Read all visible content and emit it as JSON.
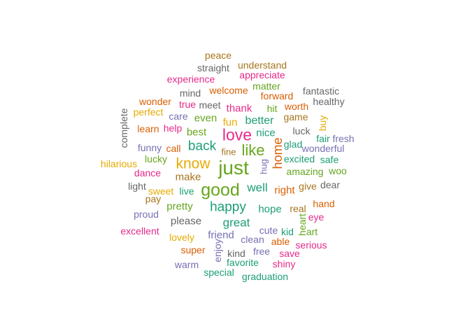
{
  "palette": {
    "teal": "#1b9e77",
    "orange": "#d95f02",
    "purple": "#7570b3",
    "pink": "#e7298a",
    "green": "#66a61e",
    "gold": "#e6ab02",
    "brown": "#a6761d",
    "gray": "#666666"
  },
  "words": [
    {
      "text": "just",
      "color": "green",
      "weight": 28
    },
    {
      "text": "good",
      "color": "green",
      "weight": 26
    },
    {
      "text": "love",
      "color": "pink",
      "weight": 24
    },
    {
      "text": "like",
      "color": "green",
      "weight": 23
    },
    {
      "text": "know",
      "color": "gold",
      "weight": 22
    },
    {
      "text": "back",
      "color": "teal",
      "weight": 21
    },
    {
      "text": "happy",
      "color": "teal",
      "weight": 20
    },
    {
      "text": "home",
      "color": "orange",
      "weight": 19,
      "vertical": true
    },
    {
      "text": "well",
      "color": "teal",
      "weight": 18
    },
    {
      "text": "great",
      "color": "teal",
      "weight": 18
    },
    {
      "text": "better",
      "color": "teal",
      "weight": 17
    },
    {
      "text": "right",
      "color": "orange",
      "weight": 16
    },
    {
      "text": "hope",
      "color": "teal",
      "weight": 16
    },
    {
      "text": "make",
      "color": "brown",
      "weight": 15
    },
    {
      "text": "even",
      "color": "green",
      "weight": 15
    },
    {
      "text": "fun",
      "color": "gold",
      "weight": 15
    },
    {
      "text": "best",
      "color": "green",
      "weight": 15
    },
    {
      "text": "nice",
      "color": "teal",
      "weight": 15
    },
    {
      "text": "thank",
      "color": "pink",
      "weight": 15
    },
    {
      "text": "pretty",
      "color": "green",
      "weight": 15
    },
    {
      "text": "friend",
      "color": "purple",
      "weight": 14
    },
    {
      "text": "please",
      "color": "gray",
      "weight": 14
    },
    {
      "text": "amazing",
      "color": "green",
      "weight": 14
    },
    {
      "text": "fine",
      "color": "brown",
      "weight": 14
    },
    {
      "text": "live",
      "color": "teal",
      "weight": 14
    },
    {
      "text": "sweet",
      "color": "gold",
      "weight": 14
    },
    {
      "text": "call",
      "color": "orange",
      "weight": 14
    },
    {
      "text": "glad",
      "color": "teal",
      "weight": 14
    },
    {
      "text": "excited",
      "color": "teal",
      "weight": 14
    },
    {
      "text": "hug",
      "color": "purple",
      "weight": 13,
      "vertical": true
    },
    {
      "text": "luck",
      "color": "gray",
      "weight": 14
    },
    {
      "text": "worth",
      "color": "orange",
      "weight": 14
    },
    {
      "text": "game",
      "color": "brown",
      "weight": 14
    },
    {
      "text": "hit",
      "color": "green",
      "weight": 14
    },
    {
      "text": "forward",
      "color": "orange",
      "weight": 14
    },
    {
      "text": "matter",
      "color": "green",
      "weight": 14
    },
    {
      "text": "welcome",
      "color": "orange",
      "weight": 14
    },
    {
      "text": "meet",
      "color": "gray",
      "weight": 14
    },
    {
      "text": "true",
      "color": "pink",
      "weight": 14
    },
    {
      "text": "mind",
      "color": "gray",
      "weight": 14
    },
    {
      "text": "care",
      "color": "purple",
      "weight": 14
    },
    {
      "text": "help",
      "color": "pink",
      "weight": 14
    },
    {
      "text": "learn",
      "color": "orange",
      "weight": 14
    },
    {
      "text": "funny",
      "color": "purple",
      "weight": 14
    },
    {
      "text": "lucky",
      "color": "green",
      "weight": 14
    },
    {
      "text": "dance",
      "color": "pink",
      "weight": 14
    },
    {
      "text": "light",
      "color": "gray",
      "weight": 14
    },
    {
      "text": "pay",
      "color": "brown",
      "weight": 14
    },
    {
      "text": "proud",
      "color": "purple",
      "weight": 14
    },
    {
      "text": "excellent",
      "color": "pink",
      "weight": 14
    },
    {
      "text": "lovely",
      "color": "gold",
      "weight": 14
    },
    {
      "text": "super",
      "color": "orange",
      "weight": 14
    },
    {
      "text": "enjoy",
      "color": "purple",
      "weight": 14,
      "vertical": true
    },
    {
      "text": "warm",
      "color": "purple",
      "weight": 14
    },
    {
      "text": "special",
      "color": "teal",
      "weight": 14
    },
    {
      "text": "favorite",
      "color": "teal",
      "weight": 14
    },
    {
      "text": "graduation",
      "color": "teal",
      "weight": 14
    },
    {
      "text": "kind",
      "color": "gray",
      "weight": 14
    },
    {
      "text": "free",
      "color": "purple",
      "weight": 14
    },
    {
      "text": "clean",
      "color": "purple",
      "weight": 14
    },
    {
      "text": "cute",
      "color": "purple",
      "weight": 14
    },
    {
      "text": "kid",
      "color": "teal",
      "weight": 14
    },
    {
      "text": "able",
      "color": "orange",
      "weight": 14
    },
    {
      "text": "save",
      "color": "pink",
      "weight": 14
    },
    {
      "text": "shiny",
      "color": "pink",
      "weight": 14
    },
    {
      "text": "serious",
      "color": "pink",
      "weight": 14
    },
    {
      "text": "art",
      "color": "green",
      "weight": 14
    },
    {
      "text": "heart",
      "color": "green",
      "weight": 14,
      "vertical": true
    },
    {
      "text": "eye",
      "color": "pink",
      "weight": 14
    },
    {
      "text": "real",
      "color": "brown",
      "weight": 14
    },
    {
      "text": "hand",
      "color": "orange",
      "weight": 14
    },
    {
      "text": "give",
      "color": "brown",
      "weight": 14
    },
    {
      "text": "dear",
      "color": "gray",
      "weight": 14
    },
    {
      "text": "woo",
      "color": "green",
      "weight": 14
    },
    {
      "text": "safe",
      "color": "teal",
      "weight": 14
    },
    {
      "text": "wonderful",
      "color": "purple",
      "weight": 14
    },
    {
      "text": "fair",
      "color": "teal",
      "weight": 14
    },
    {
      "text": "fresh",
      "color": "purple",
      "weight": 14
    },
    {
      "text": "buy",
      "color": "gold",
      "weight": 14,
      "vertical": true
    },
    {
      "text": "healthy",
      "color": "gray",
      "weight": 14
    },
    {
      "text": "fantastic",
      "color": "gray",
      "weight": 14
    },
    {
      "text": "appreciate",
      "color": "pink",
      "weight": 14
    },
    {
      "text": "understand",
      "color": "brown",
      "weight": 14
    },
    {
      "text": "straight",
      "color": "gray",
      "weight": 14
    },
    {
      "text": "peace",
      "color": "brown",
      "weight": 14
    },
    {
      "text": "experience",
      "color": "pink",
      "weight": 14
    },
    {
      "text": "wonder",
      "color": "orange",
      "weight": 14
    },
    {
      "text": "perfect",
      "color": "gold",
      "weight": 14
    },
    {
      "text": "complete",
      "color": "gray",
      "weight": 14,
      "vertical": true
    },
    {
      "text": "hilarious",
      "color": "gold",
      "weight": 14
    }
  ]
}
